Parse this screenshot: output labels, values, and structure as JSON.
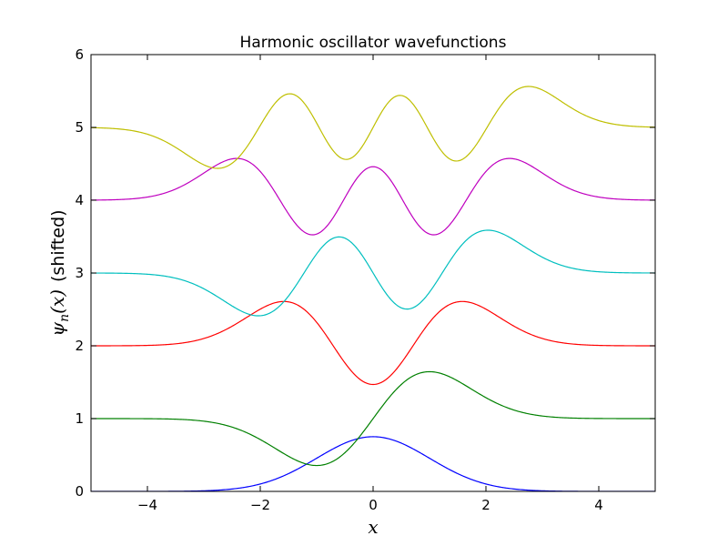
{
  "chart_data": {
    "type": "line",
    "title": "Harmonic oscillator wavefunctions",
    "xlabel": "x",
    "ylabel_symbol": "ψ",
    "ylabel_subscript": "n",
    "ylabel_arg": "(x)",
    "ylabel_suffix": "(shifted)",
    "xlim": [
      -5,
      5
    ],
    "ylim": [
      0,
      6
    ],
    "xticks": [
      -4,
      -2,
      0,
      2,
      4
    ],
    "xtick_labels": [
      "−4",
      "−2",
      "0",
      "2",
      "4"
    ],
    "yticks": [
      0,
      1,
      2,
      3,
      4,
      5,
      6
    ],
    "ytick_labels": [
      "0",
      "1",
      "2",
      "3",
      "4",
      "5",
      "6"
    ],
    "grid": false,
    "legend": "none",
    "series": [
      {
        "n": 0,
        "offset": 0,
        "color": "#0000ff"
      },
      {
        "n": 1,
        "offset": 1,
        "color": "#008000"
      },
      {
        "n": 2,
        "offset": 2,
        "color": "#ff0000"
      },
      {
        "n": 3,
        "offset": 3,
        "color": "#00bfbf"
      },
      {
        "n": 4,
        "offset": 4,
        "color": "#bf00bf"
      },
      {
        "n": 5,
        "offset": 5,
        "color": "#bfbf00"
      }
    ]
  }
}
